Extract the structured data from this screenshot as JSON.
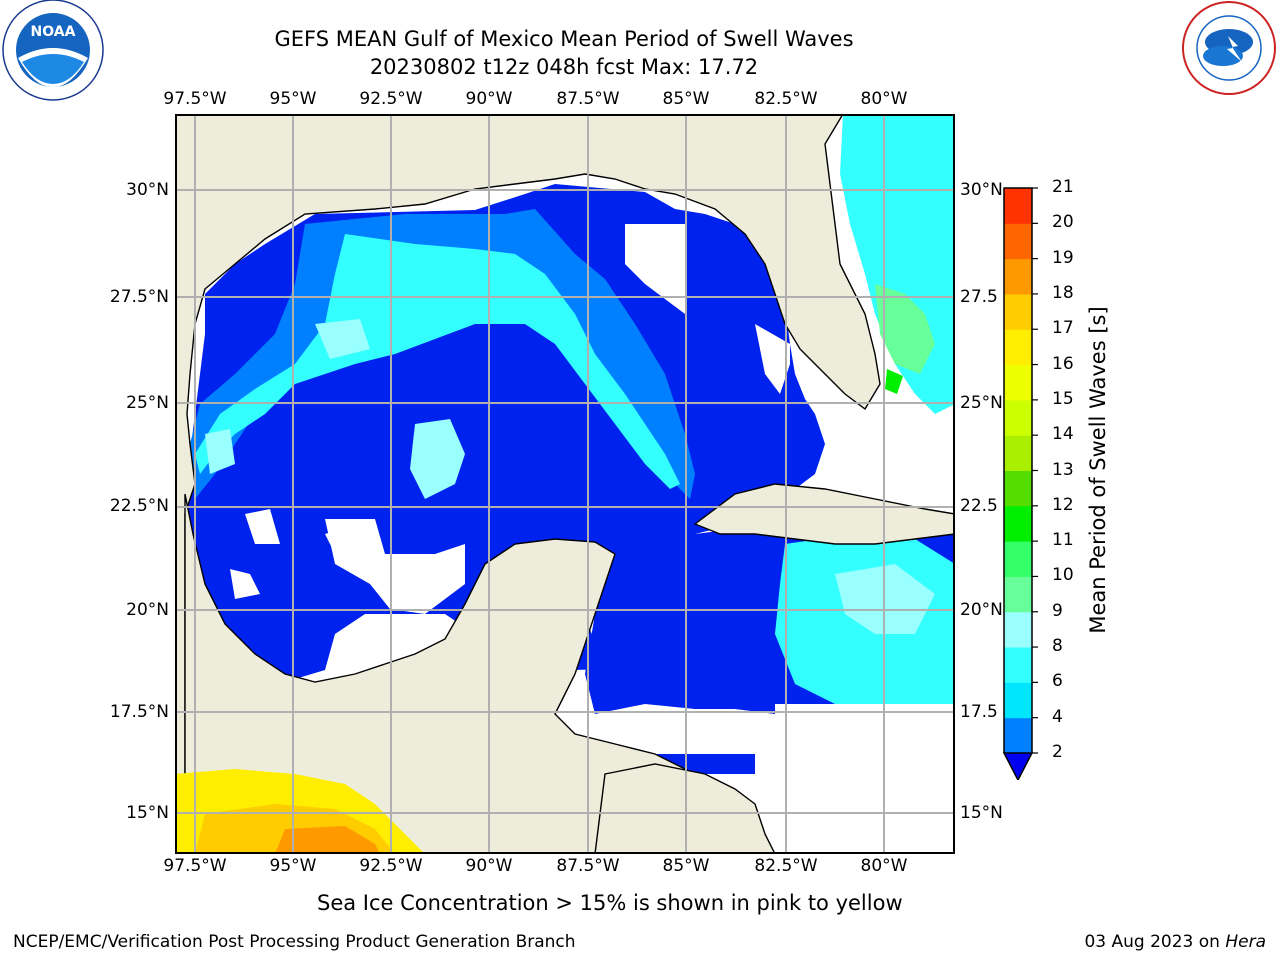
{
  "title_line1": "GEFS MEAN Gulf of Mexico Mean Period of Swell Waves",
  "title_line2": "20230802 t12z 048h fcst   Max: 17.72",
  "logos": {
    "left": {
      "icon": "noaa-logo-icon",
      "text": "NOAA",
      "ring_text": "NATIONAL OCEANIC AND ATMOSPHERIC ADMINISTRATION · U.S. DEPARTMENT OF COMMERCE"
    },
    "right": {
      "icon": "nws-logo-icon",
      "ring_text": "NATIONAL WEATHER SERVICE"
    }
  },
  "map": {
    "lon_labels": [
      "97.5°W",
      "95°W",
      "92.5°W",
      "90°W",
      "87.5°W",
      "85°W",
      "82.5°W",
      "80°W"
    ],
    "lat_labels_left": [
      "30°N",
      "27.5°N",
      "25°N",
      "22.5°N",
      "20°N",
      "17.5°N",
      "15°N"
    ],
    "lat_labels_right": [
      "30°N",
      "27.5",
      "25°N",
      "22.5",
      "20°N",
      "17.5",
      "15°N"
    ],
    "land_color": "#eeeddc",
    "no_data_color": "#ffffff",
    "grid_color": "#b0b0b0",
    "extent": {
      "lon": [
        -98,
        -78.25
      ],
      "lat": [
        14,
        31.75
      ]
    }
  },
  "colorbar": {
    "label": "Mean Period of Swell Waves [s]",
    "levels": [
      "2",
      "4",
      "6",
      "8",
      "9",
      "10",
      "11",
      "12",
      "13",
      "14",
      "15",
      "16",
      "17",
      "18",
      "19",
      "20",
      "21"
    ],
    "colors": [
      "#0033ff",
      "#0080ff",
      "#00e6ff",
      "#33ffff",
      "#99ffff",
      "#66ff99",
      "#33ff66",
      "#00ee00",
      "#55dd00",
      "#aaee00",
      "#ccff00",
      "#eeff00",
      "#ffee00",
      "#ffcc00",
      "#ff9900",
      "#ff6600",
      "#ff3300",
      "#ff0000"
    ],
    "under_color": "#0000ee"
  },
  "caption": "Sea Ice Concentration > 15% is shown in pink to yellow",
  "footer_left": "NCEP/EMC/Verification Post Processing Product Generation Branch",
  "footer_right_prefix": "03 Aug 2023 on ",
  "footer_right_host": "Hera"
}
